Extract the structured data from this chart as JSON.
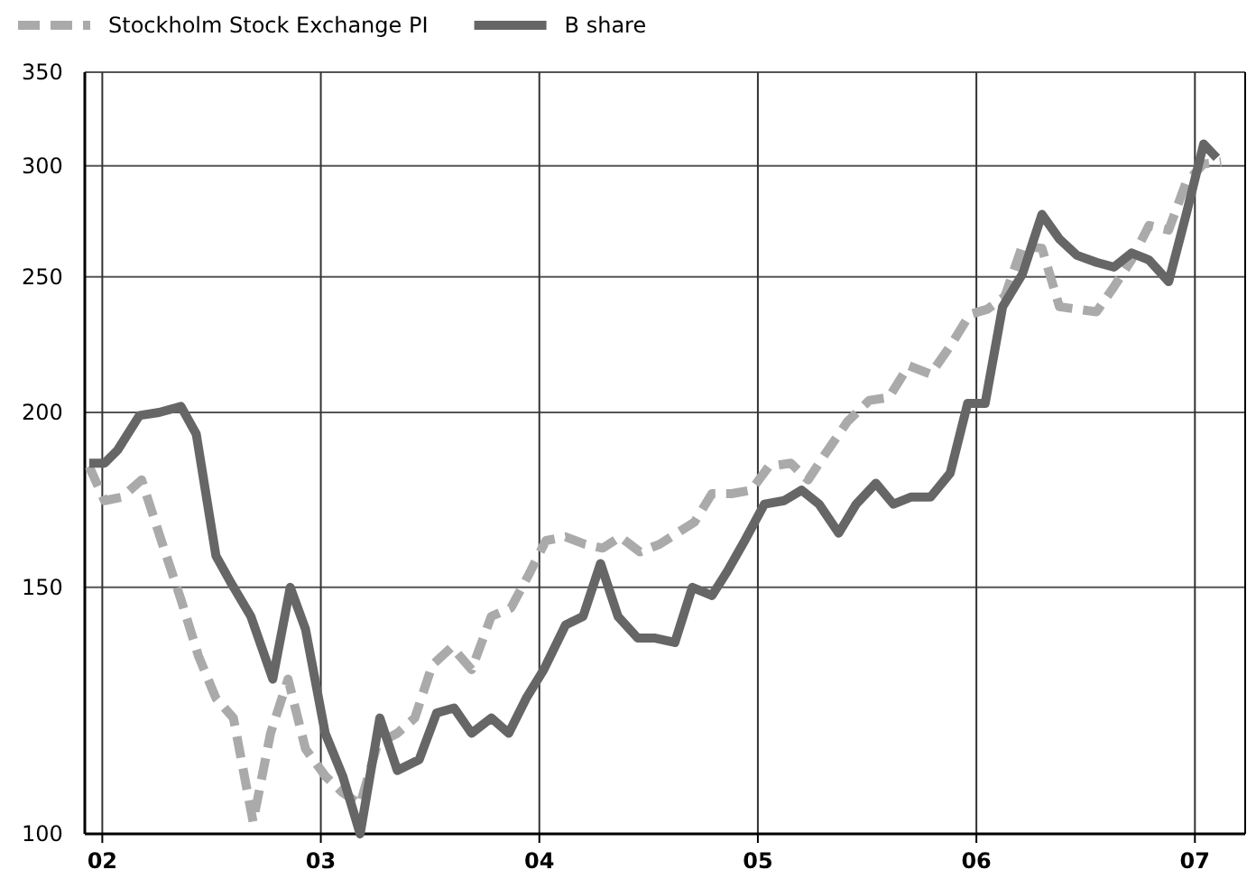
{
  "chart_data": {
    "type": "line",
    "log": true,
    "grid": true,
    "legend": "top",
    "marker": "none",
    "xlim": [
      2001.92,
      2007.23
    ],
    "xticks": [
      {
        "value": 2002,
        "label": "02"
      },
      {
        "value": 2003,
        "label": "03"
      },
      {
        "value": 2004,
        "label": "04"
      },
      {
        "value": 2005,
        "label": "05"
      },
      {
        "value": 2006,
        "label": "06"
      },
      {
        "value": 2007,
        "label": "07"
      }
    ],
    "ylim": [
      100,
      350
    ],
    "yticks": [
      100,
      150,
      200,
      250,
      300,
      350
    ],
    "series": [
      {
        "name": "Stockholm Stock Exchange PI",
        "color": "#aaaaaa",
        "line_style": "dashed",
        "x": [
          2001.94,
          2002.01,
          2002.09,
          2002.18,
          2002.27,
          2002.36,
          2002.44,
          2002.52,
          2002.6,
          2002.69,
          2002.77,
          2002.85,
          2002.93,
          2003.02,
          2003.1,
          2003.18,
          2003.26,
          2003.35,
          2003.43,
          2003.51,
          2003.6,
          2003.69,
          2003.78,
          2003.87,
          2003.95,
          2004.03,
          2004.12,
          2004.21,
          2004.29,
          2004.37,
          2004.46,
          2004.55,
          2004.63,
          2004.71,
          2004.79,
          2004.88,
          2004.97,
          2005.05,
          2005.15,
          2005.23,
          2005.31,
          2005.41,
          2005.51,
          2005.6,
          2005.69,
          2005.79,
          2005.88,
          2005.97,
          2006.05,
          2006.13,
          2006.21,
          2006.3,
          2006.38,
          2006.46,
          2006.55,
          2006.63,
          2006.71,
          2006.79,
          2006.88,
          2006.96,
          2007.04,
          2007.12
        ],
        "values": [
          183,
          173,
          174,
          179,
          162,
          147,
          134,
          125,
          121,
          102,
          118,
          129,
          115,
          110,
          107,
          105,
          116,
          118,
          121,
          132,
          136,
          131,
          143,
          145,
          153,
          162,
          163,
          161,
          160,
          163,
          159,
          161,
          164,
          167,
          175,
          175,
          176,
          183,
          184,
          179,
          187,
          197,
          204,
          205,
          216,
          213,
          223,
          235,
          237,
          242,
          263,
          262,
          238,
          237,
          236,
          246,
          257,
          272,
          270,
          292,
          301,
          302
        ]
      },
      {
        "name": "B share",
        "color": "#666666",
        "line_style": "solid",
        "x": [
          2001.94,
          2002.01,
          2002.07,
          2002.17,
          2002.26,
          2002.36,
          2002.43,
          2002.52,
          2002.59,
          2002.68,
          2002.78,
          2002.86,
          2002.93,
          2003.02,
          2003.1,
          2003.18,
          2003.27,
          2003.35,
          2003.45,
          2003.53,
          2003.61,
          2003.69,
          2003.78,
          2003.86,
          2003.94,
          2004.02,
          2004.12,
          2004.2,
          2004.28,
          2004.36,
          2004.45,
          2004.53,
          2004.62,
          2004.7,
          2004.79,
          2004.86,
          2004.94,
          2005.03,
          2005.12,
          2005.2,
          2005.28,
          2005.37,
          2005.45,
          2005.54,
          2005.62,
          2005.7,
          2005.79,
          2005.88,
          2005.96,
          2006.04,
          2006.12,
          2006.21,
          2006.3,
          2006.38,
          2006.46,
          2006.55,
          2006.63,
          2006.71,
          2006.79,
          2006.88,
          2006.96,
          2007.04,
          2007.1
        ],
        "values": [
          184,
          184,
          188,
          199,
          200,
          202,
          193,
          158,
          151,
          143,
          129,
          150,
          140,
          118,
          110,
          100,
          121,
          111,
          113,
          122,
          123,
          118,
          121,
          118,
          125,
          131,
          141,
          143,
          156,
          143,
          138,
          138,
          137,
          150,
          148,
          154,
          162,
          172,
          173,
          176,
          172,
          164,
          172,
          178,
          172,
          174,
          174,
          181,
          203,
          203,
          238,
          251,
          277,
          266,
          259,
          256,
          254,
          260,
          257,
          248,
          277,
          311,
          304
        ]
      }
    ]
  }
}
